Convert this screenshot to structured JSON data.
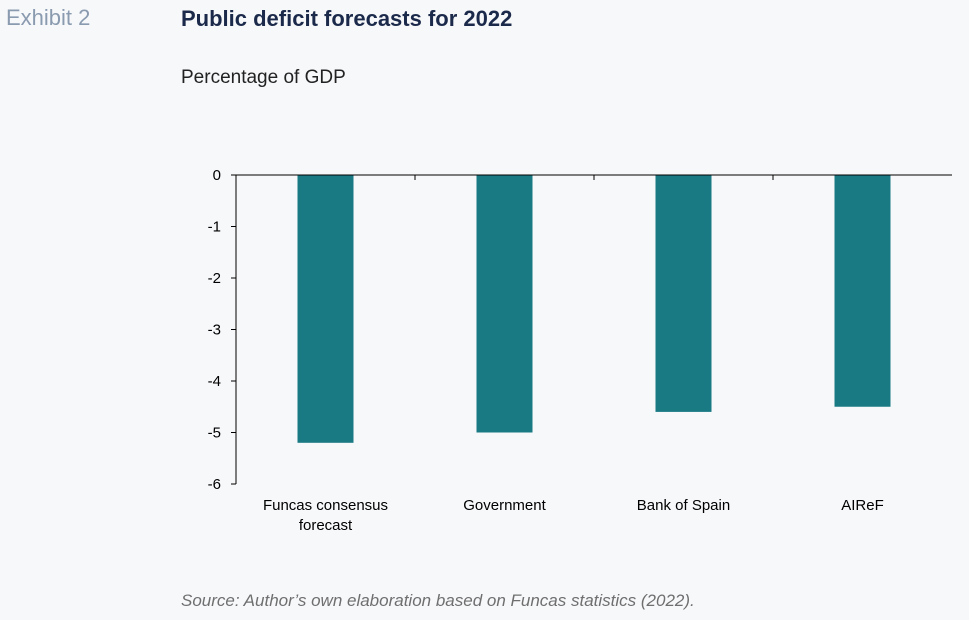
{
  "header": {
    "exhibit_label": "Exhibit 2",
    "title": "Public deficit forecasts for 2022",
    "subtitle": "Percentage of GDP"
  },
  "footer": {
    "source": "Source: Author’s own elaboration based on Funcas statistics (2022)."
  },
  "chart_data": {
    "type": "bar",
    "categories": [
      [
        "Funcas consensus",
        "forecast"
      ],
      [
        "Government"
      ],
      [
        "Bank of Spain"
      ],
      [
        "AIReF"
      ]
    ],
    "values": [
      -5.2,
      -5.0,
      -4.6,
      -4.5
    ],
    "ylim": [
      -6,
      0
    ],
    "yticks": [
      "0",
      "-1",
      "-2",
      "-3",
      "-4",
      "-5",
      "-6"
    ],
    "grid": false,
    "bar_color": "#1a7a84"
  }
}
